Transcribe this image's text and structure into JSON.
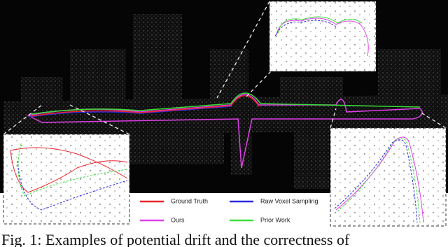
{
  "figure": {
    "legend": [
      {
        "label": "Ground Truth",
        "color": "#e8242c"
      },
      {
        "label": "Raw Voxel Sampling",
        "color": "#2a2ae0"
      },
      {
        "label": "Ours",
        "color": "#e040e8"
      },
      {
        "label": "Prior Work",
        "color": "#3adf3a"
      }
    ],
    "caption": "Fig. 1: Examples of potential drift and the correctness of"
  }
}
